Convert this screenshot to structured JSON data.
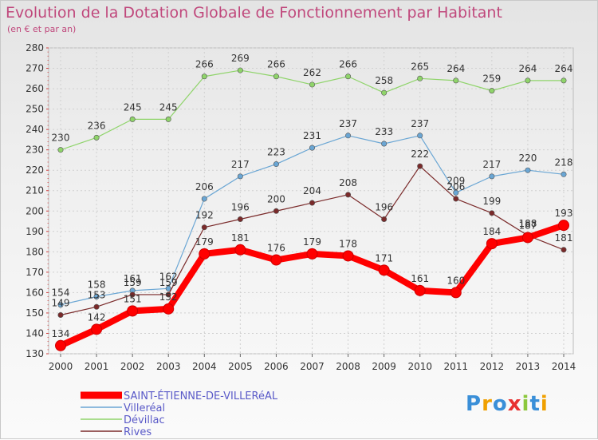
{
  "chart_data": {
    "type": "line",
    "title": "Evolution de la Dotation Globale de Fonctionnement par Habitant",
    "subtitle": "(en € et par an)",
    "xlabel": "",
    "ylabel": "",
    "ylim": [
      130,
      280
    ],
    "y_ticks": [
      "130",
      "140",
      "150",
      "160",
      "170",
      "180",
      "190",
      "200",
      "210",
      "220",
      "230",
      "240",
      "250",
      "260",
      "270",
      "280"
    ],
    "categories": [
      "2000",
      "2001",
      "2002",
      "2003",
      "2004",
      "2005",
      "2006",
      "2007",
      "2008",
      "2009",
      "2010",
      "2011",
      "2012",
      "2013",
      "2014"
    ],
    "grid": true,
    "legend_position": "bottom-left",
    "series": [
      {
        "name": "SAINT-ÉTIENNE-DE-VILLERéAL",
        "color": "#ff0000",
        "emphasis": true,
        "values": [
          134,
          142,
          151,
          152,
          179,
          181,
          176,
          179,
          178,
          171,
          161,
          160,
          184,
          187,
          193
        ],
        "labels": [
          "134",
          "142",
          "151",
          "152",
          "179",
          "181",
          "176",
          "179",
          "178",
          "171",
          "161",
          "160",
          "184",
          "187",
          "193"
        ]
      },
      {
        "name": "Villeréal",
        "color": "#6aa6d4",
        "values": [
          154,
          158,
          161,
          162,
          206,
          217,
          223,
          231,
          237,
          233,
          237,
          209,
          217,
          220,
          218
        ],
        "labels": [
          "154",
          "158",
          "161",
          "162",
          "206",
          "217",
          "223",
          "231",
          "237",
          "233",
          "237",
          "209",
          "217",
          "220",
          "218"
        ]
      },
      {
        "name": "Dévillac",
        "color": "#8fd46a",
        "values": [
          230,
          236,
          245,
          245,
          266,
          269,
          266,
          262,
          266,
          258,
          265,
          264,
          259,
          264,
          264
        ],
        "labels": [
          "230",
          "236",
          "245",
          "245",
          "266",
          "269",
          "266",
          "262",
          "266",
          "258",
          "265",
          "264",
          "259",
          "264",
          "264"
        ]
      },
      {
        "name": "Rives",
        "color": "#7a2a2a",
        "values": [
          149,
          153,
          159,
          159,
          192,
          196,
          200,
          204,
          208,
          196,
          222,
          206,
          199,
          188,
          181
        ],
        "labels": [
          "149",
          "153",
          "159",
          "159",
          "192",
          "196",
          "200",
          "204",
          "208",
          "196",
          "222",
          "206",
          "199",
          "188",
          "181"
        ]
      }
    ]
  },
  "logo": {
    "letters": [
      "P",
      "r",
      "o",
      "x",
      "i",
      "t",
      "i"
    ],
    "colors": [
      "#3a8fd8",
      "#f0a000",
      "#3a8fd8",
      "#e83030",
      "#8cc83c",
      "#3a8fd8",
      "#f0a000"
    ]
  }
}
